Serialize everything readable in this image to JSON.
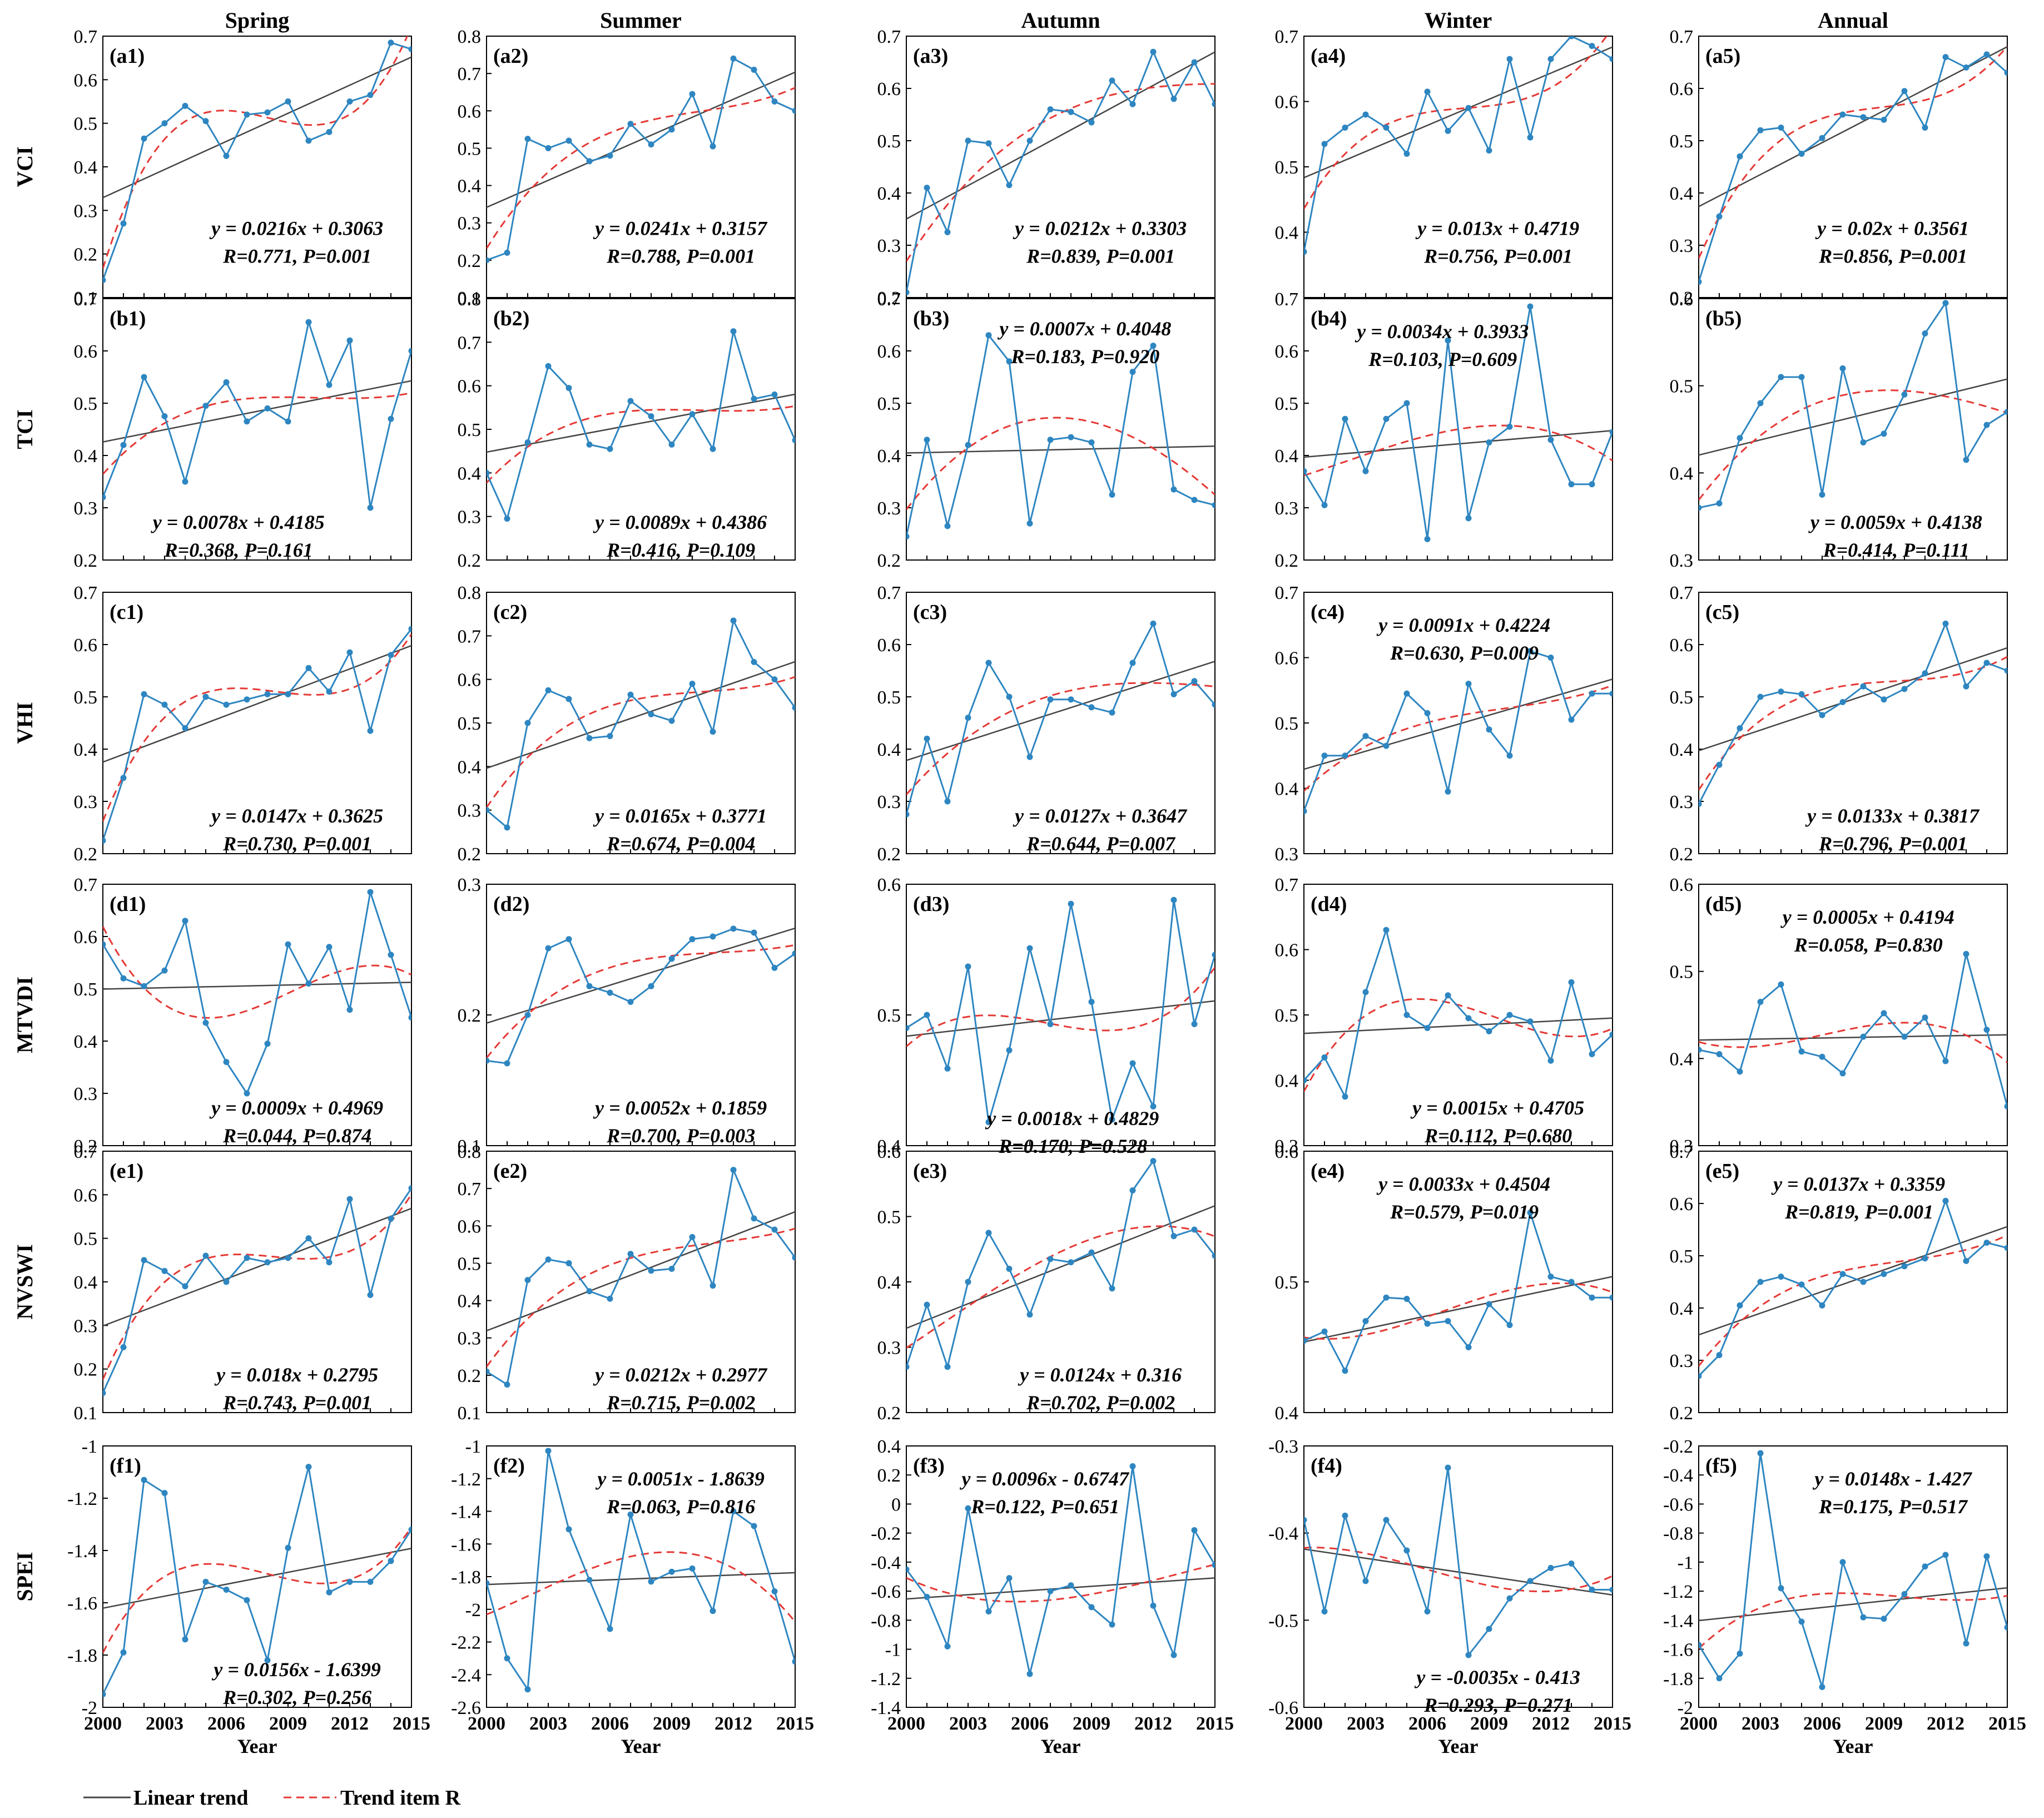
{
  "columns": [
    "Spring",
    "Summer",
    "Autumn",
    "Winter",
    "Annual"
  ],
  "rows": [
    "VCI",
    "TCI",
    "VHI",
    "MTVDI",
    "NVSWI",
    "SPEI"
  ],
  "x_label": "Year",
  "x_ticks": [
    "2000",
    "2003",
    "2006",
    "2009",
    "2012",
    "2015"
  ],
  "legend": {
    "linear": "Linear trend",
    "trend": "Trend item R"
  },
  "colors": {
    "data": "#2E86C1",
    "linear": "#444444",
    "trend": "#E53935"
  },
  "chart_data": [
    {
      "type": "line",
      "panel": "(a1)",
      "ylim": [
        0.1,
        0.7
      ],
      "yticks": [
        "0.1",
        "0.2",
        "0.3",
        "0.4",
        "0.5",
        "0.6",
        "0.7"
      ],
      "eq": "y = 0.0216x + 0.3063",
      "stats": "R=0.771, P=0.001",
      "values": [
        0.14,
        0.27,
        0.465,
        0.5,
        0.54,
        0.505,
        0.425,
        0.52,
        0.525,
        0.55,
        0.46,
        0.48,
        0.55,
        0.565,
        0.685,
        0.67
      ]
    },
    {
      "type": "line",
      "panel": "(a2)",
      "ylim": [
        0.1,
        0.8
      ],
      "yticks": [
        "0.1",
        "0.2",
        "0.3",
        "0.4",
        "0.5",
        "0.6",
        "0.7",
        "0.8"
      ],
      "eq": "y = 0.0241x + 0.3157",
      "stats": "R=0.788, P=0.001",
      "values": [
        0.2,
        0.22,
        0.525,
        0.5,
        0.52,
        0.465,
        0.48,
        0.565,
        0.51,
        0.55,
        0.645,
        0.505,
        0.74,
        0.71,
        0.625,
        0.6
      ]
    },
    {
      "type": "line",
      "panel": "(a3)",
      "ylim": [
        0.2,
        0.7
      ],
      "yticks": [
        "0.2",
        "0.3",
        "0.4",
        "0.5",
        "0.6",
        "0.7"
      ],
      "eq": "y = 0.0212x + 0.3303",
      "stats": "R=0.839, P=0.001",
      "values": [
        0.21,
        0.41,
        0.325,
        0.5,
        0.495,
        0.415,
        0.5,
        0.56,
        0.555,
        0.535,
        0.615,
        0.57,
        0.67,
        0.58,
        0.65,
        0.57
      ]
    },
    {
      "type": "line",
      "panel": "(a4)",
      "ylim": [
        0.3,
        0.7
      ],
      "yticks": [
        "0.4",
        "0.5",
        "0.6",
        "0.7"
      ],
      "eq": "y = 0.013x + 0.4719",
      "stats": "R=0.756, P=0.001",
      "values": [
        0.37,
        0.535,
        0.56,
        0.58,
        0.56,
        0.52,
        0.615,
        0.555,
        0.59,
        0.525,
        0.665,
        0.545,
        0.665,
        0.7,
        0.685,
        0.665
      ]
    },
    {
      "type": "line",
      "panel": "(a5)",
      "ylim": [
        0.2,
        0.7
      ],
      "yticks": [
        "0.2",
        "0.3",
        "0.4",
        "0.5",
        "0.6",
        "0.7"
      ],
      "eq": "y = 0.02x + 0.3561",
      "stats": "R=0.856, P=0.001",
      "values": [
        0.23,
        0.355,
        0.47,
        0.52,
        0.525,
        0.475,
        0.505,
        0.55,
        0.545,
        0.54,
        0.595,
        0.525,
        0.66,
        0.64,
        0.665,
        0.63
      ]
    },
    {
      "type": "line",
      "panel": "(b1)",
      "ylim": [
        0.2,
        0.7
      ],
      "yticks": [
        "0.2",
        "0.3",
        "0.4",
        "0.5",
        "0.6",
        "0.7"
      ],
      "eq": "y = 0.0078x + 0.4185",
      "stats": "R=0.368, P=0.161",
      "values": [
        0.32,
        0.42,
        0.55,
        0.475,
        0.35,
        0.495,
        0.54,
        0.465,
        0.49,
        0.465,
        0.655,
        0.535,
        0.62,
        0.3,
        0.47,
        0.6
      ]
    },
    {
      "type": "line",
      "panel": "(b2)",
      "ylim": [
        0.2,
        0.8
      ],
      "yticks": [
        "0.2",
        "0.3",
        "0.4",
        "0.5",
        "0.6",
        "0.7",
        "0.8"
      ],
      "eq": "y = 0.0089x + 0.4386",
      "stats": "R=0.416, P=0.109",
      "values": [
        0.4,
        0.295,
        0.47,
        0.645,
        0.595,
        0.465,
        0.455,
        0.565,
        0.53,
        0.465,
        0.535,
        0.455,
        0.725,
        0.57,
        0.58,
        0.475
      ]
    },
    {
      "type": "line",
      "panel": "(b3)",
      "ylim": [
        0.2,
        0.7
      ],
      "yticks": [
        "0.2",
        "0.3",
        "0.4",
        "0.5",
        "0.6",
        "0.7"
      ],
      "eq": "y = 0.0007x + 0.4048",
      "stats": "R=0.183, P=0.920",
      "values": [
        0.245,
        0.43,
        0.265,
        0.42,
        0.63,
        0.58,
        0.27,
        0.43,
        0.435,
        0.425,
        0.325,
        0.56,
        0.61,
        0.335,
        0.315,
        0.305
      ]
    },
    {
      "type": "line",
      "panel": "(b4)",
      "ylim": [
        0.2,
        0.7
      ],
      "yticks": [
        "0.2",
        "0.3",
        "0.4",
        "0.5",
        "0.6",
        "0.7"
      ],
      "eq": "y = 0.0034x + 0.3933",
      "stats": "R=0.103, P=0.609",
      "values": [
        0.37,
        0.305,
        0.47,
        0.37,
        0.47,
        0.5,
        0.24,
        0.62,
        0.28,
        0.425,
        0.455,
        0.685,
        0.43,
        0.345,
        0.345,
        0.445
      ]
    },
    {
      "type": "line",
      "panel": "(b5)",
      "ylim": [
        0.3,
        0.6
      ],
      "yticks": [
        "0.3",
        "0.4",
        "0.5",
        "0.6"
      ],
      "eq": "y = 0.0059x + 0.4138",
      "stats": "R=0.414, P=0.111",
      "values": [
        0.36,
        0.365,
        0.44,
        0.48,
        0.51,
        0.51,
        0.375,
        0.52,
        0.435,
        0.445,
        0.49,
        0.56,
        0.595,
        0.415,
        0.455,
        0.47
      ]
    },
    {
      "type": "line",
      "panel": "(c1)",
      "ylim": [
        0.2,
        0.7
      ],
      "yticks": [
        "0.2",
        "0.3",
        "0.4",
        "0.5",
        "0.6",
        "0.7"
      ],
      "eq": "y = 0.0147x + 0.3625",
      "stats": "R=0.730, P=0.001",
      "values": [
        0.225,
        0.345,
        0.505,
        0.485,
        0.44,
        0.5,
        0.485,
        0.495,
        0.505,
        0.505,
        0.555,
        0.51,
        0.585,
        0.435,
        0.58,
        0.63
      ]
    },
    {
      "type": "line",
      "panel": "(c2)",
      "ylim": [
        0.2,
        0.8
      ],
      "yticks": [
        "0.2",
        "0.3",
        "0.4",
        "0.5",
        "0.6",
        "0.7",
        "0.8"
      ],
      "eq": "y = 0.0165x + 0.3771",
      "stats": "R=0.674, P=0.004",
      "values": [
        0.3,
        0.26,
        0.5,
        0.575,
        0.555,
        0.465,
        0.47,
        0.565,
        0.52,
        0.505,
        0.59,
        0.48,
        0.735,
        0.64,
        0.6,
        0.535
      ]
    },
    {
      "type": "line",
      "panel": "(c3)",
      "ylim": [
        0.2,
        0.7
      ],
      "yticks": [
        "0.2",
        "0.3",
        "0.4",
        "0.5",
        "0.6",
        "0.7"
      ],
      "eq": "y = 0.0127x + 0.3647",
      "stats": "R=0.644, P=0.007",
      "values": [
        0.275,
        0.42,
        0.3,
        0.46,
        0.565,
        0.5,
        0.385,
        0.495,
        0.495,
        0.48,
        0.47,
        0.565,
        0.64,
        0.505,
        0.53,
        0.485
      ]
    },
    {
      "type": "line",
      "panel": "(c4)",
      "ylim": [
        0.3,
        0.7
      ],
      "yticks": [
        "0.3",
        "0.4",
        "0.5",
        "0.6",
        "0.7"
      ],
      "eq": "y = 0.0091x + 0.4224",
      "stats": "R=0.630, P=0.009",
      "values": [
        0.365,
        0.45,
        0.45,
        0.48,
        0.465,
        0.545,
        0.515,
        0.395,
        0.56,
        0.49,
        0.45,
        0.61,
        0.6,
        0.505,
        0.545,
        0.545
      ]
    },
    {
      "type": "line",
      "panel": "(c5)",
      "ylim": [
        0.2,
        0.7
      ],
      "yticks": [
        "0.2",
        "0.3",
        "0.4",
        "0.5",
        "0.6",
        "0.7"
      ],
      "eq": "y = 0.0133x + 0.3817",
      "stats": "R=0.796, P=0.001",
      "values": [
        0.295,
        0.37,
        0.44,
        0.5,
        0.51,
        0.505,
        0.465,
        0.49,
        0.52,
        0.495,
        0.515,
        0.545,
        0.64,
        0.52,
        0.565,
        0.55
      ]
    },
    {
      "type": "line",
      "panel": "(d1)",
      "ylim": [
        0.2,
        0.7
      ],
      "yticks": [
        "0.2",
        "0.3",
        "0.4",
        "0.5",
        "0.6",
        "0.7"
      ],
      "eq": "y = 0.0009x + 0.4969",
      "stats": "R=0.044, P=0.874",
      "values": [
        0.585,
        0.52,
        0.505,
        0.535,
        0.63,
        0.435,
        0.36,
        0.3,
        0.395,
        0.585,
        0.51,
        0.58,
        0.46,
        0.685,
        0.565,
        0.445
      ]
    },
    {
      "type": "line",
      "panel": "(d2)",
      "ylim": [
        0.1,
        0.3
      ],
      "yticks": [
        "0.1",
        "0.2",
        "0.3"
      ],
      "eq": "y = 0.0052x + 0.1859",
      "stats": "R=0.700, P=0.003",
      "values": [
        0.165,
        0.163,
        0.2,
        0.251,
        0.258,
        0.222,
        0.217,
        0.21,
        0.222,
        0.243,
        0.258,
        0.26,
        0.266,
        0.263,
        0.236,
        0.247
      ]
    },
    {
      "type": "line",
      "panel": "(d3)",
      "ylim": [
        0.4,
        0.6
      ],
      "yticks": [
        "0.4",
        "0.5",
        "0.6"
      ],
      "eq": "y = 0.0018x + 0.4829",
      "stats": "R=0.170, P=0.528",
      "values": [
        0.49,
        0.5,
        0.459,
        0.537,
        0.418,
        0.473,
        0.551,
        0.493,
        0.585,
        0.51,
        0.42,
        0.463,
        0.43,
        0.588,
        0.493,
        0.546
      ]
    },
    {
      "type": "line",
      "panel": "(d4)",
      "ylim": [
        0.3,
        0.7
      ],
      "yticks": [
        "0.3",
        "0.4",
        "0.5",
        "0.6",
        "0.7"
      ],
      "eq": "y = 0.0015x + 0.4705",
      "stats": "R=0.112, P=0.680",
      "values": [
        0.4,
        0.435,
        0.375,
        0.535,
        0.63,
        0.5,
        0.48,
        0.53,
        0.495,
        0.475,
        0.5,
        0.49,
        0.43,
        0.55,
        0.44,
        0.47
      ]
    },
    {
      "type": "line",
      "panel": "(d5)",
      "ylim": [
        0.3,
        0.6
      ],
      "yticks": [
        "0.3",
        "0.4",
        "0.5",
        "0.6"
      ],
      "eq": "y = 0.0005x + 0.4194",
      "stats": "R=0.058, P=0.830",
      "values": [
        0.41,
        0.405,
        0.385,
        0.465,
        0.485,
        0.408,
        0.402,
        0.383,
        0.425,
        0.452,
        0.425,
        0.447,
        0.397,
        0.52,
        0.433,
        0.345
      ]
    },
    {
      "type": "line",
      "panel": "(e1)",
      "ylim": [
        0.1,
        0.7
      ],
      "yticks": [
        "0.1",
        "0.2",
        "0.3",
        "0.4",
        "0.5",
        "0.6",
        "0.7"
      ],
      "eq": "y = 0.018x + 0.2795",
      "stats": "R=0.743, P=0.001",
      "values": [
        0.145,
        0.25,
        0.45,
        0.425,
        0.39,
        0.46,
        0.4,
        0.455,
        0.445,
        0.455,
        0.5,
        0.445,
        0.59,
        0.37,
        0.545,
        0.615
      ]
    },
    {
      "type": "line",
      "panel": "(e2)",
      "ylim": [
        0.1,
        0.8
      ],
      "yticks": [
        "0.1",
        "0.2",
        "0.3",
        "0.4",
        "0.5",
        "0.6",
        "0.7",
        "0.8"
      ],
      "eq": "y = 0.0212x + 0.2977",
      "stats": "R=0.715, P=0.002",
      "values": [
        0.21,
        0.175,
        0.455,
        0.51,
        0.5,
        0.425,
        0.405,
        0.525,
        0.48,
        0.485,
        0.57,
        0.44,
        0.75,
        0.62,
        0.59,
        0.515
      ]
    },
    {
      "type": "line",
      "panel": "(e3)",
      "ylim": [
        0.2,
        0.6
      ],
      "yticks": [
        "0.2",
        "0.3",
        "0.4",
        "0.5",
        "0.6"
      ],
      "eq": "y = 0.0124x + 0.316",
      "stats": "R=0.702, P=0.002",
      "values": [
        0.27,
        0.365,
        0.27,
        0.4,
        0.475,
        0.42,
        0.35,
        0.435,
        0.43,
        0.445,
        0.39,
        0.54,
        0.585,
        0.47,
        0.48,
        0.44
      ]
    },
    {
      "type": "line",
      "panel": "(e4)",
      "ylim": [
        0.4,
        0.6
      ],
      "yticks": [
        "0.4",
        "0.5",
        "0.6"
      ],
      "eq": "y = 0.0033x + 0.4504",
      "stats": "R=0.579, P=0.019",
      "values": [
        0.455,
        0.462,
        0.432,
        0.47,
        0.488,
        0.487,
        0.468,
        0.47,
        0.45,
        0.483,
        0.467,
        0.553,
        0.504,
        0.5,
        0.488,
        0.488
      ]
    },
    {
      "type": "line",
      "panel": "(e5)",
      "ylim": [
        0.2,
        0.7
      ],
      "yticks": [
        "0.2",
        "0.3",
        "0.4",
        "0.5",
        "0.6",
        "0.7"
      ],
      "eq": "y = 0.0137x + 0.3359",
      "stats": "R=0.819, P=0.001",
      "values": [
        0.27,
        0.31,
        0.405,
        0.45,
        0.46,
        0.445,
        0.405,
        0.465,
        0.45,
        0.465,
        0.48,
        0.495,
        0.605,
        0.49,
        0.525,
        0.515
      ]
    },
    {
      "type": "line",
      "panel": "(f1)",
      "ylim": [
        -2,
        -1
      ],
      "yticks": [
        "-2",
        "-1.8",
        "-1.6",
        "-1.4",
        "-1.2",
        "-1"
      ],
      "eq": "y = 0.0156x - 1.6399",
      "stats": "R=0.302, P=0.256",
      "values": [
        -1.95,
        -1.79,
        -1.13,
        -1.18,
        -1.74,
        -1.52,
        -1.55,
        -1.59,
        -1.82,
        -1.39,
        -1.08,
        -1.56,
        -1.52,
        -1.52,
        -1.44,
        -1.32
      ]
    },
    {
      "type": "line",
      "panel": "(f2)",
      "ylim": [
        -2.6,
        -1
      ],
      "yticks": [
        "-2.6",
        "-2.4",
        "-2.2",
        "-2",
        "-1.8",
        "-1.6",
        "-1.4",
        "-1.2",
        "-1"
      ],
      "eq": "y = 0.0051x - 1.8639",
      "stats": "R=0.063, P=0.816",
      "values": [
        -1.84,
        -2.3,
        -2.49,
        -1.03,
        -1.51,
        -1.82,
        -2.12,
        -1.42,
        -1.83,
        -1.77,
        -1.75,
        -2.01,
        -1.4,
        -1.49,
        -1.89,
        -2.32
      ]
    },
    {
      "type": "line",
      "panel": "(f3)",
      "ylim": [
        -1.4,
        0.4
      ],
      "yticks": [
        "-1.4",
        "-1.2",
        "-1",
        "-0.8",
        "-0.6",
        "-0.4",
        "-0.2",
        "0",
        "0.2",
        "0.4"
      ],
      "eq": "y = 0.0096x - 0.6747",
      "stats": "R=0.122, P=0.651",
      "values": [
        -0.45,
        -0.64,
        -0.98,
        -0.03,
        -0.74,
        -0.51,
        -1.17,
        -0.6,
        -0.56,
        -0.71,
        -0.83,
        0.26,
        -0.7,
        -1.04,
        -0.18,
        -0.42
      ]
    },
    {
      "type": "line",
      "panel": "(f4)",
      "ylim": [
        -0.6,
        -0.3
      ],
      "yticks": [
        "-0.6",
        "-0.5",
        "-0.4",
        "-0.3"
      ],
      "eq": "y = -0.0035x - 0.413",
      "stats": "R=0.293, P=0.271",
      "values": [
        -0.385,
        -0.49,
        -0.38,
        -0.455,
        -0.385,
        -0.42,
        -0.49,
        -0.325,
        -0.54,
        -0.51,
        -0.475,
        -0.455,
        -0.44,
        -0.435,
        -0.465,
        -0.465
      ]
    },
    {
      "type": "line",
      "panel": "(f5)",
      "ylim": [
        -2,
        -0.2
      ],
      "yticks": [
        "-2",
        "-1.8",
        "-1.6",
        "-1.4",
        "-1.2",
        "-1",
        "-0.8",
        "-0.6",
        "-0.4",
        "-0.2"
      ],
      "eq": "y = 0.0148x - 1.427",
      "stats": "R=0.175, P=0.517",
      "values": [
        -1.57,
        -1.8,
        -1.63,
        -0.25,
        -1.18,
        -1.41,
        -1.86,
        -1.0,
        -1.38,
        -1.39,
        -1.22,
        -1.03,
        -0.95,
        -1.56,
        -0.96,
        -1.45
      ]
    }
  ]
}
